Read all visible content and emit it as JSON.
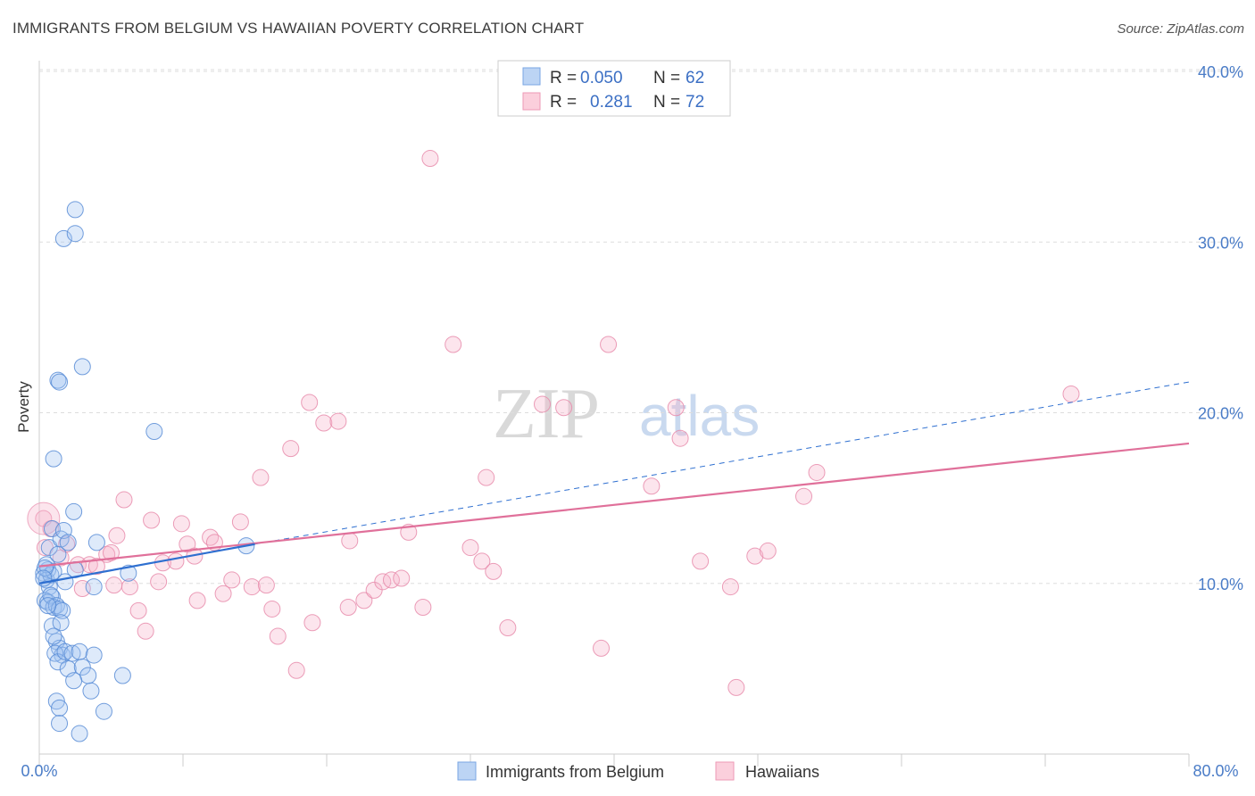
{
  "title": "IMMIGRANTS FROM BELGIUM VS HAWAIIAN POVERTY CORRELATION CHART",
  "source": "Source: ZipAtlas.com",
  "watermark": {
    "zip": "ZIP",
    "atlas": "atlas"
  },
  "colors": {
    "blue": "#6fa0e0",
    "blue_line": "#2e6fd0",
    "pink": "#ee8fb0",
    "pink_line": "#e0709a",
    "grid": "#dddddd",
    "tick_text": "#4a7cc7"
  },
  "legend": {
    "rows": [
      {
        "r_label": "R =",
        "r_value": "0.050",
        "n_label": "N =",
        "n_value": "62"
      },
      {
        "r_label": "R =",
        "r_value": "0.281",
        "n_label": "N =",
        "n_value": "72"
      }
    ]
  },
  "chart_data": {
    "type": "scatter",
    "title": "IMMIGRANTS FROM BELGIUM VS HAWAIIAN POVERTY CORRELATION CHART",
    "xlabel": "",
    "ylabel": "Poverty",
    "xlim": [
      0,
      80
    ],
    "ylim": [
      0,
      40
    ],
    "x_tick_labels": [
      "0.0%",
      "80.0%"
    ],
    "y_ticks": [
      10,
      20,
      30,
      40
    ],
    "y_tick_labels": [
      "10.0%",
      "20.0%",
      "30.0%",
      "40.0%"
    ],
    "legend_position": "top-center",
    "series": [
      {
        "name": "Immigrants from Belgium",
        "R": 0.05,
        "N": 62,
        "trend_solid": [
          [
            0,
            10.0
          ],
          [
            15,
            12.3
          ]
        ],
        "trend_dashed": [
          [
            15,
            12.3
          ],
          [
            80,
            21.8
          ]
        ],
        "points": [
          [
            0.3,
            10.6
          ],
          [
            0.5,
            10.2
          ],
          [
            0.6,
            10.8
          ],
          [
            0.7,
            9.8
          ],
          [
            0.8,
            10.5
          ],
          [
            0.9,
            9.2
          ],
          [
            1.0,
            10.7
          ],
          [
            0.4,
            9.0
          ],
          [
            0.6,
            8.9
          ],
          [
            0.8,
            9.3
          ],
          [
            1.0,
            8.6
          ],
          [
            1.2,
            8.7
          ],
          [
            1.4,
            8.5
          ],
          [
            1.6,
            8.4
          ],
          [
            0.5,
            11.1
          ],
          [
            0.7,
            12.1
          ],
          [
            0.9,
            13.2
          ],
          [
            1.3,
            11.7
          ],
          [
            1.5,
            12.6
          ],
          [
            1.7,
            13.1
          ],
          [
            2.0,
            12.4
          ],
          [
            2.4,
            14.2
          ],
          [
            0.9,
            7.5
          ],
          [
            1.2,
            6.6
          ],
          [
            1.4,
            6.2
          ],
          [
            1.5,
            7.7
          ],
          [
            1.6,
            5.8
          ],
          [
            1.1,
            5.9
          ],
          [
            1.3,
            5.4
          ],
          [
            1.8,
            6.0
          ],
          [
            2.0,
            5.0
          ],
          [
            2.3,
            5.9
          ],
          [
            2.8,
            6.0
          ],
          [
            3.0,
            5.1
          ],
          [
            3.4,
            4.6
          ],
          [
            3.8,
            5.8
          ],
          [
            2.4,
            4.3
          ],
          [
            3.6,
            3.7
          ],
          [
            5.8,
            4.6
          ],
          [
            1.2,
            3.1
          ],
          [
            1.4,
            2.7
          ],
          [
            4.5,
            2.5
          ],
          [
            1.4,
            1.8
          ],
          [
            2.8,
            1.2
          ],
          [
            1.0,
            17.3
          ],
          [
            1.3,
            21.9
          ],
          [
            1.4,
            21.8
          ],
          [
            3.0,
            22.7
          ],
          [
            1.7,
            30.2
          ],
          [
            2.5,
            30.5
          ],
          [
            2.5,
            31.9
          ],
          [
            8.0,
            18.9
          ],
          [
            4.0,
            12.4
          ],
          [
            6.2,
            10.6
          ],
          [
            3.8,
            9.8
          ],
          [
            14.4,
            12.2
          ],
          [
            2.5,
            10.8
          ],
          [
            0.4,
            10.9
          ],
          [
            0.3,
            10.3
          ],
          [
            1.8,
            10.1
          ],
          [
            0.6,
            8.7
          ],
          [
            1.0,
            6.9
          ]
        ]
      },
      {
        "name": "Hawaiians",
        "R": 0.281,
        "N": 72,
        "trend_solid": [
          [
            0,
            11.0
          ],
          [
            80,
            18.2
          ]
        ],
        "points": [
          [
            0.3,
            13.8
          ],
          [
            0.4,
            12.1
          ],
          [
            0.8,
            13.2
          ],
          [
            1.5,
            11.5
          ],
          [
            1.9,
            12.3
          ],
          [
            2.7,
            11.1
          ],
          [
            3.0,
            9.7
          ],
          [
            3.5,
            11.1
          ],
          [
            4.0,
            11.0
          ],
          [
            4.7,
            11.7
          ],
          [
            5.0,
            11.8
          ],
          [
            5.4,
            12.8
          ],
          [
            5.9,
            14.9
          ],
          [
            6.3,
            9.8
          ],
          [
            6.9,
            8.4
          ],
          [
            7.4,
            7.2
          ],
          [
            7.8,
            13.7
          ],
          [
            8.3,
            10.1
          ],
          [
            8.6,
            11.2
          ],
          [
            9.5,
            11.3
          ],
          [
            9.9,
            13.5
          ],
          [
            10.3,
            12.3
          ],
          [
            10.8,
            11.6
          ],
          [
            11.0,
            9.0
          ],
          [
            11.9,
            12.7
          ],
          [
            12.2,
            12.4
          ],
          [
            12.8,
            9.4
          ],
          [
            13.4,
            10.2
          ],
          [
            14.0,
            13.6
          ],
          [
            14.8,
            9.8
          ],
          [
            15.4,
            16.2
          ],
          [
            15.8,
            9.9
          ],
          [
            16.2,
            8.5
          ],
          [
            16.6,
            6.9
          ],
          [
            17.5,
            17.9
          ],
          [
            17.9,
            4.9
          ],
          [
            18.8,
            20.6
          ],
          [
            19.0,
            7.7
          ],
          [
            19.8,
            19.4
          ],
          [
            20.8,
            19.5
          ],
          [
            21.5,
            8.6
          ],
          [
            21.6,
            12.5
          ],
          [
            22.6,
            9.0
          ],
          [
            23.3,
            9.6
          ],
          [
            23.9,
            10.1
          ],
          [
            24.5,
            10.2
          ],
          [
            25.2,
            10.3
          ],
          [
            25.7,
            13.0
          ],
          [
            26.7,
            8.6
          ],
          [
            27.2,
            34.9
          ],
          [
            28.8,
            24.0
          ],
          [
            30.0,
            12.1
          ],
          [
            30.8,
            11.3
          ],
          [
            31.1,
            16.2
          ],
          [
            31.6,
            10.7
          ],
          [
            32.6,
            7.4
          ],
          [
            35.0,
            20.5
          ],
          [
            36.5,
            20.3
          ],
          [
            39.1,
            6.2
          ],
          [
            39.6,
            24.0
          ],
          [
            42.6,
            15.7
          ],
          [
            44.3,
            20.3
          ],
          [
            44.6,
            18.5
          ],
          [
            46.0,
            11.3
          ],
          [
            48.1,
            9.8
          ],
          [
            48.5,
            3.9
          ],
          [
            49.8,
            11.6
          ],
          [
            50.7,
            11.9
          ],
          [
            53.2,
            15.1
          ],
          [
            54.1,
            16.5
          ],
          [
            71.8,
            21.1
          ],
          [
            5.2,
            9.9
          ]
        ]
      }
    ]
  },
  "bottom_legend": [
    {
      "label": "Immigrants from Belgium"
    },
    {
      "label": "Hawaiians"
    }
  ]
}
